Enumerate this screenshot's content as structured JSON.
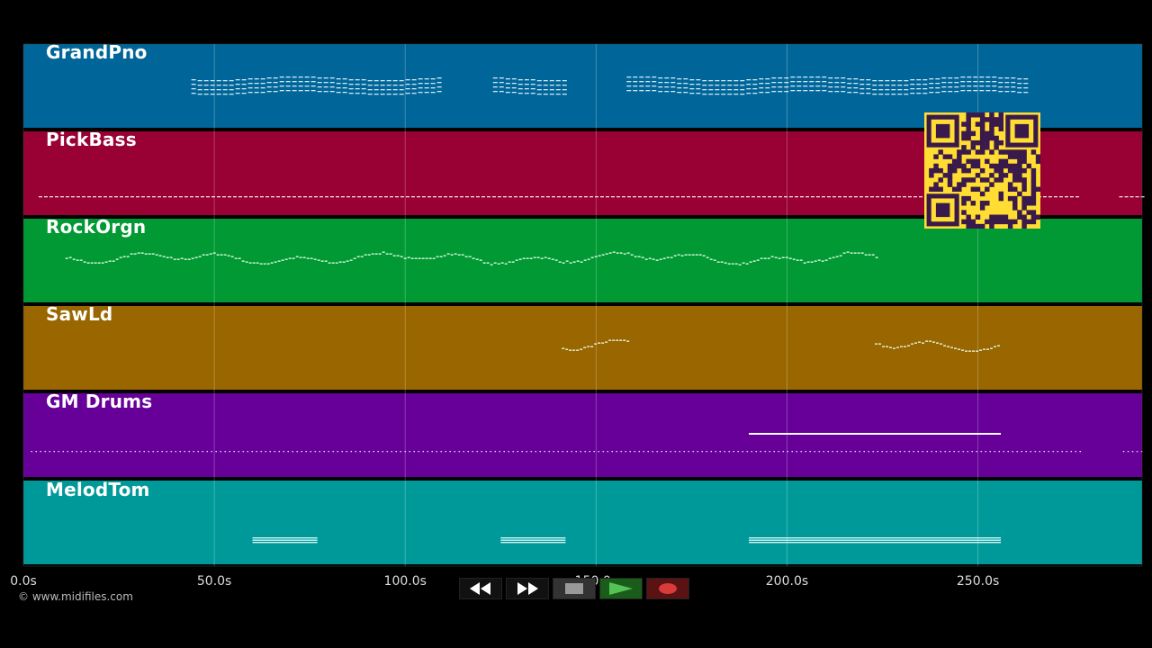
{
  "app": {
    "copyright": "© www.midifiles.com"
  },
  "timeline": {
    "min_seconds": 0,
    "max_seconds": 293,
    "ticks": [
      {
        "value": 0,
        "label": "0.0s"
      },
      {
        "value": 50,
        "label": "50.0s"
      },
      {
        "value": 100,
        "label": "100.0s"
      },
      {
        "value": 150,
        "label": "150.0s"
      },
      {
        "value": 200,
        "label": "200.0s"
      },
      {
        "value": 250,
        "label": "250.0s"
      }
    ]
  },
  "tracks": [
    {
      "name": "GrandPno",
      "color": "#006699",
      "segments": [
        {
          "start": 44,
          "end": 109,
          "style": "chords"
        },
        {
          "start": 123,
          "end": 142,
          "style": "chords"
        },
        {
          "start": 158,
          "end": 262,
          "style": "chords"
        }
      ]
    },
    {
      "name": "PickBass",
      "color": "#990033",
      "segments": [
        {
          "start": 4,
          "end": 276,
          "style": "dashes"
        },
        {
          "start": 287,
          "end": 293,
          "style": "dashes"
        }
      ]
    },
    {
      "name": "RockOrgn",
      "color": "#009933",
      "segments": [
        {
          "start": 11,
          "end": 224,
          "style": "melody"
        }
      ]
    },
    {
      "name": "SawLd",
      "color": "#996600",
      "segments": [
        {
          "start": 141,
          "end": 158,
          "style": "melody"
        },
        {
          "start": 223,
          "end": 256,
          "style": "melody"
        }
      ]
    },
    {
      "name": "GM Drums",
      "color": "#660099",
      "segments": [
        {
          "start": 2,
          "end": 277,
          "style": "dots"
        },
        {
          "start": 288,
          "end": 293,
          "style": "dots"
        },
        {
          "start": 190,
          "end": 256,
          "style": "line"
        }
      ]
    },
    {
      "name": "MelodTom",
      "color": "#009999",
      "segments": [
        {
          "start": 60,
          "end": 77,
          "style": "dense"
        },
        {
          "start": 125,
          "end": 142,
          "style": "dense"
        },
        {
          "start": 190,
          "end": 256,
          "style": "dense"
        }
      ]
    }
  ],
  "transport": {
    "rewind": {
      "icon": "rewind-icon",
      "color": "#111111"
    },
    "forward": {
      "icon": "fast-forward-icon",
      "color": "#111111"
    },
    "stop": {
      "icon": "stop-icon",
      "color": "#333333"
    },
    "play": {
      "icon": "play-icon",
      "color": "#1a5c1a"
    },
    "record": {
      "icon": "record-icon",
      "color": "#5a1212"
    }
  },
  "qr": {
    "icon": "qr-code-icon",
    "bg": "#ffdd33",
    "fg": "#3a1a4a"
  }
}
